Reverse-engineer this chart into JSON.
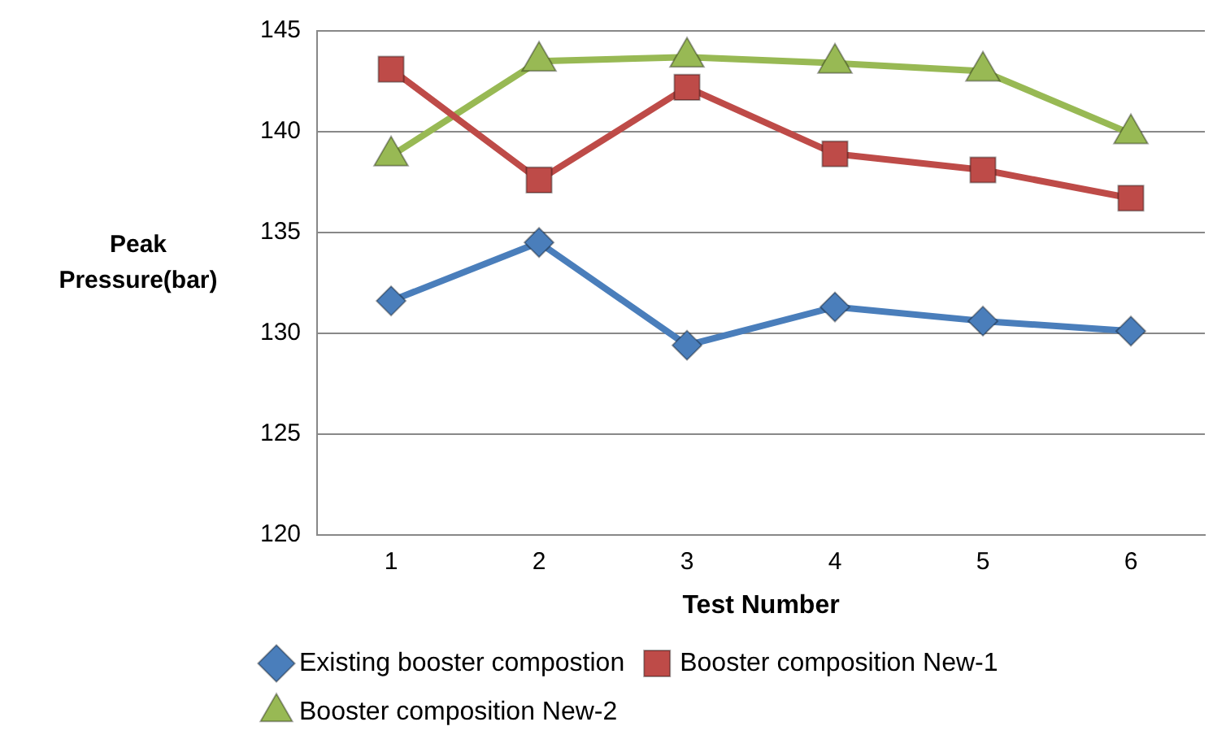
{
  "chart_data": {
    "type": "line",
    "xlabel": "Test Number",
    "ylabel": "Peak Pressure(bar)",
    "categories": [
      "1",
      "2",
      "3",
      "4",
      "5",
      "6"
    ],
    "ylim": [
      120,
      145
    ],
    "yticks": [
      120,
      125,
      130,
      135,
      140,
      145
    ],
    "grid": "y",
    "legend": "bottom",
    "series": [
      {
        "name": "Existing booster compostion",
        "color": "#4a7ebb",
        "marker": "diamond",
        "values": [
          131.6,
          134.5,
          129.4,
          131.3,
          130.6,
          130.1
        ]
      },
      {
        "name": "Booster composition New-1",
        "color": "#be4b48",
        "marker": "square",
        "values": [
          143.1,
          137.6,
          142.2,
          138.9,
          138.1,
          136.7
        ]
      },
      {
        "name": "Booster composition New-2",
        "color": "#98b954",
        "marker": "triangle",
        "values": [
          138.8,
          143.5,
          143.7,
          143.4,
          143.0,
          139.9
        ]
      }
    ]
  }
}
